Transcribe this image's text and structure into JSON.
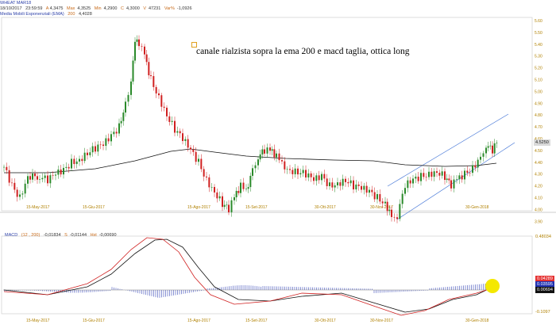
{
  "header": {
    "symbol": "WHEAT MAR18",
    "date": "18/10/2017",
    "time": "23:59:59",
    "open_label": "A",
    "open": "4,3475",
    "high_label": "Max",
    "high": "4,3525",
    "low_label": "Min",
    "low": "4,2900",
    "close_label": "C",
    "close": "4,3000",
    "volume_label": "V",
    "volume": "47231",
    "change_label": "Var%",
    "change": "-1,0926",
    "ema_name": "Media Mobili Esponenziali (EMA)",
    "ema_period": "200",
    "ema_value": "4,4028"
  },
  "annotation": {
    "text": "canale rialzista sopra la ema 200 e macd taglia, ottica long"
  },
  "price_axis": {
    "ticks": [
      "5.60",
      "5.50",
      "5.40",
      "5.30",
      "5.20",
      "5.10",
      "5.00",
      "4.90",
      "4.80",
      "4.70",
      "4.60",
      "4.50",
      "4.40",
      "4.30",
      "4.20",
      "4.10",
      "4.00",
      "3.90"
    ],
    "last_price_label": "4.5250"
  },
  "date_axis": {
    "ticks": [
      "15-May-2017",
      "15-Giu-2017",
      "15-Ago-2017",
      "15-Set-2017",
      "30-Ott-2017",
      "30-Nov-2017",
      "30-Gen-2018"
    ]
  },
  "macd_header": {
    "name": "MACD",
    "params": "(12 , 200)",
    "macd_value": "-0,01834",
    "signal_label": "S",
    "signal_value": "-0,01144",
    "hist_label": "Hst",
    "hist_value": "-0,00690"
  },
  "macd_axis": {
    "top_label": "0.48034",
    "bottom_label": "-0.1097",
    "red_label": "0.04289",
    "blue_label": "0.03595",
    "black_label": "0.00694"
  },
  "colors": {
    "price_up": "#2a8a2a",
    "price_down": "#d02020",
    "ema": "#111111",
    "channel": "#4a7ad8",
    "macd_line": "#111111",
    "signal_line": "#d02020",
    "histogram": "#3a4ab8",
    "highlight": "#f4e800"
  }
}
